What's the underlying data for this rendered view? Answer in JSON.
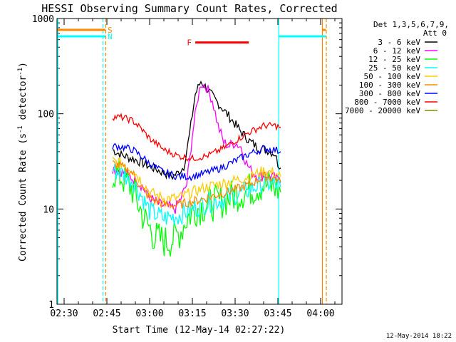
{
  "chart_data": {
    "type": "line",
    "title": "HESSI Observing Summary Count Rates, Corrected",
    "xlabel": "Start Time (12-May-14 02:27:22)",
    "ylabel": "Corrected Count Rate (s-1 detector-1)",
    "ylabel_parts": {
      "main": "Corrected Count Rate (s",
      "sup1": "-1",
      "mid": " detector",
      "sup2": "-1",
      "end": ")"
    },
    "yscale": "log",
    "ylim": [
      1,
      1000
    ],
    "xlim_minutes": [
      147.5,
      247.5
    ],
    "y_ticks": [
      {
        "v": 1,
        "label": "1"
      },
      {
        "v": 10,
        "label": "10"
      },
      {
        "v": 100,
        "label": "100"
      },
      {
        "v": 1000,
        "label": "1000"
      }
    ],
    "x_ticks": [
      {
        "m": 150,
        "label": "02:30"
      },
      {
        "m": 165,
        "label": "02:45"
      },
      {
        "m": 180,
        "label": "03:00"
      },
      {
        "m": 195,
        "label": "03:15"
      },
      {
        "m": 210,
        "label": "03:30"
      },
      {
        "m": 225,
        "label": "03:45"
      },
      {
        "m": 240,
        "label": "04:00"
      }
    ],
    "legend_header": [
      "Det 1,3,5,6,7,9,",
      "Att 0"
    ],
    "legend_position": "right",
    "footer_date": "12-May-2014 18:22",
    "series": [
      {
        "name": "3 - 6 keV",
        "color": "#000000",
        "points": [
          [
            167,
            42
          ],
          [
            170,
            37
          ],
          [
            175,
            33
          ],
          [
            180,
            28
          ],
          [
            185,
            24
          ],
          [
            188,
            22
          ],
          [
            190,
            24
          ],
          [
            192,
            28
          ],
          [
            194,
            60
          ],
          [
            196,
            160
          ],
          [
            198,
            220
          ],
          [
            200,
            185
          ],
          [
            203,
            140
          ],
          [
            206,
            110
          ],
          [
            209,
            85
          ],
          [
            212,
            65
          ],
          [
            215,
            52
          ],
          [
            218,
            44
          ],
          [
            221,
            42
          ],
          [
            224,
            38
          ],
          [
            225,
            30
          ],
          [
            226,
            27
          ]
        ]
      },
      {
        "name": "6 - 12 keV",
        "color": "#ff00ff",
        "points": [
          [
            167,
            27
          ],
          [
            170,
            25
          ],
          [
            174,
            21
          ],
          [
            177,
            18
          ],
          [
            180,
            13
          ],
          [
            184,
            11
          ],
          [
            187,
            10.5
          ],
          [
            189,
            10
          ],
          [
            191,
            13
          ],
          [
            193,
            18
          ],
          [
            195,
            60
          ],
          [
            197,
            150
          ],
          [
            198,
            210
          ],
          [
            200,
            190
          ],
          [
            202,
            140
          ],
          [
            204,
            75
          ],
          [
            206,
            50
          ],
          [
            208,
            46
          ],
          [
            210,
            50
          ],
          [
            212,
            45
          ],
          [
            214,
            30
          ],
          [
            216,
            24
          ],
          [
            219,
            22
          ],
          [
            222,
            23
          ],
          [
            225,
            20
          ],
          [
            226,
            19
          ]
        ]
      },
      {
        "name": "12 - 25 keV",
        "color": "#00ff00",
        "points": [
          [
            167,
            24
          ],
          [
            170,
            22
          ],
          [
            174,
            16
          ],
          [
            178,
            8
          ],
          [
            182,
            5
          ],
          [
            186,
            4.5
          ],
          [
            189,
            5
          ],
          [
            191,
            6
          ],
          [
            193,
            8
          ],
          [
            196,
            10
          ],
          [
            200,
            11
          ],
          [
            205,
            12
          ],
          [
            210,
            14
          ],
          [
            215,
            16
          ],
          [
            220,
            18
          ],
          [
            224,
            17
          ],
          [
            226,
            15
          ]
        ]
      },
      {
        "name": "25 - 50 keV",
        "color": "#00ffff",
        "points": [
          [
            167,
            26
          ],
          [
            170,
            24
          ],
          [
            174,
            20
          ],
          [
            177,
            14
          ],
          [
            180,
            9.5
          ],
          [
            185,
            8
          ],
          [
            190,
            8.5
          ],
          [
            195,
            10
          ],
          [
            200,
            11.5
          ],
          [
            205,
            12.5
          ],
          [
            210,
            14
          ],
          [
            215,
            16
          ],
          [
            220,
            19
          ],
          [
            224,
            18
          ],
          [
            226,
            17
          ]
        ]
      },
      {
        "name": "50 - 100 keV",
        "color": "#ffcc00",
        "points": [
          [
            167,
            32
          ],
          [
            170,
            30
          ],
          [
            174,
            26
          ],
          [
            177,
            20
          ],
          [
            180,
            15
          ],
          [
            185,
            13
          ],
          [
            190,
            13
          ],
          [
            195,
            15
          ],
          [
            200,
            17
          ],
          [
            205,
            18.5
          ],
          [
            210,
            20
          ],
          [
            215,
            22
          ],
          [
            220,
            25
          ],
          [
            224,
            24
          ],
          [
            226,
            22
          ]
        ]
      },
      {
        "name": "100 - 300 keV",
        "color": "#ff8800",
        "points": [
          [
            167,
            30
          ],
          [
            170,
            28
          ],
          [
            174,
            24
          ],
          [
            177,
            17
          ],
          [
            180,
            13
          ],
          [
            185,
            11
          ],
          [
            190,
            11
          ],
          [
            195,
            12
          ],
          [
            200,
            13
          ],
          [
            205,
            14.5
          ],
          [
            210,
            16
          ],
          [
            215,
            18
          ],
          [
            220,
            22
          ],
          [
            224,
            21
          ],
          [
            226,
            19
          ]
        ]
      },
      {
        "name": "300 - 800 keV",
        "color": "#0000ff",
        "points": [
          [
            167,
            46
          ],
          [
            170,
            45
          ],
          [
            174,
            42
          ],
          [
            177,
            36
          ],
          [
            180,
            30
          ],
          [
            185,
            24
          ],
          [
            190,
            22
          ],
          [
            195,
            22
          ],
          [
            200,
            24
          ],
          [
            205,
            27
          ],
          [
            210,
            32
          ],
          [
            215,
            38
          ],
          [
            220,
            43
          ],
          [
            224,
            42
          ],
          [
            226,
            40
          ]
        ]
      },
      {
        "name": "800 - 7000 keV",
        "color": "#ff0000",
        "points": [
          [
            167,
            93
          ],
          [
            170,
            92
          ],
          [
            174,
            85
          ],
          [
            177,
            70
          ],
          [
            180,
            55
          ],
          [
            185,
            42
          ],
          [
            190,
            36
          ],
          [
            195,
            34
          ],
          [
            200,
            36
          ],
          [
            205,
            42
          ],
          [
            210,
            52
          ],
          [
            215,
            64
          ],
          [
            220,
            75
          ],
          [
            224,
            75
          ],
          [
            226,
            72
          ]
        ]
      },
      {
        "name": "7000 - 20000 keV",
        "color": "#888800",
        "points": []
      }
    ],
    "flags": [
      {
        "label": "S",
        "color": "#ff8800",
        "y": 760,
        "segments": [
          [
            147.5,
            164.5
          ],
          [
            240.5,
            241.8
          ]
        ]
      },
      {
        "label": "N",
        "color": "#00ffff",
        "y": 650,
        "segments": [
          [
            147.5,
            164.5
          ],
          [
            225.3,
            241.8
          ]
        ]
      },
      {
        "label": "F",
        "color": "#ff0000",
        "y": 560,
        "segments": [
          [
            196,
            214.8
          ]
        ]
      }
    ],
    "boundaries": [
      {
        "m": 147.8,
        "color": "#00ffff",
        "style": "solid"
      },
      {
        "m": 163.6,
        "color": "#00ffff",
        "style": "dashed"
      },
      {
        "m": 164.6,
        "color": "#ff8800",
        "style": "dashed"
      },
      {
        "m": 225.3,
        "color": "#00ffff",
        "style": "solid"
      },
      {
        "m": 240.6,
        "color": "#ff8800",
        "style": "solid"
      },
      {
        "m": 242.0,
        "color": "#ff8800",
        "style": "dashed"
      }
    ]
  }
}
